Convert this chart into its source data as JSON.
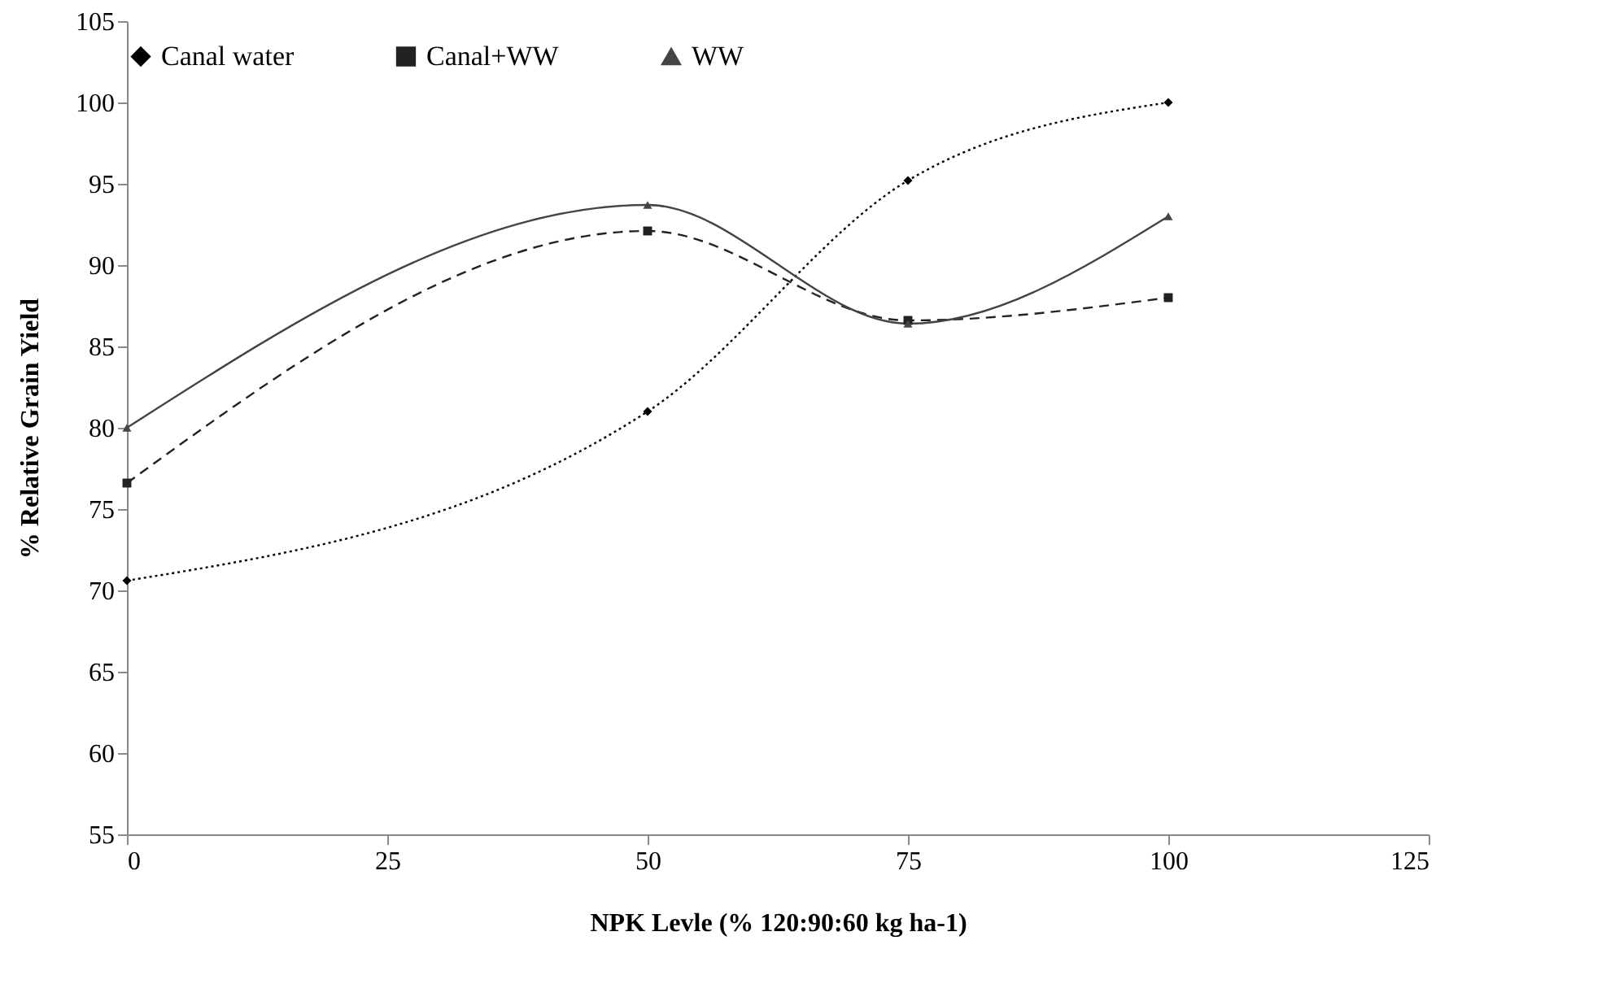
{
  "chart_data": {
    "type": "line",
    "xlabel": "NPK Levle (% 120:90:60 kg ha-1)",
    "ylabel": "% Relative  Grain Yield",
    "x": [
      0,
      50,
      75,
      100
    ],
    "series": [
      {
        "name": "Canal water",
        "color": "#000000",
        "marker": "diamond",
        "line_style": "dotted",
        "values": [
          70.6,
          81,
          95.2,
          100
        ]
      },
      {
        "name": "Canal+WW",
        "color": "#222222",
        "marker": "square",
        "line_style": "dashed",
        "values": [
          76.6,
          92.1,
          86.6,
          88
        ]
      },
      {
        "name": "WW",
        "color": "#444444",
        "marker": "triangle",
        "line_style": "solid",
        "values": [
          80,
          93.7,
          86.4,
          93
        ]
      }
    ],
    "xlim": [
      0,
      125
    ],
    "xticks": [
      0,
      25,
      50,
      75,
      100,
      125
    ],
    "ylim": [
      55,
      105
    ],
    "yticks": [
      55,
      60,
      65,
      70,
      75,
      80,
      85,
      90,
      95,
      100,
      105
    ],
    "grid": false,
    "legend": "top"
  }
}
